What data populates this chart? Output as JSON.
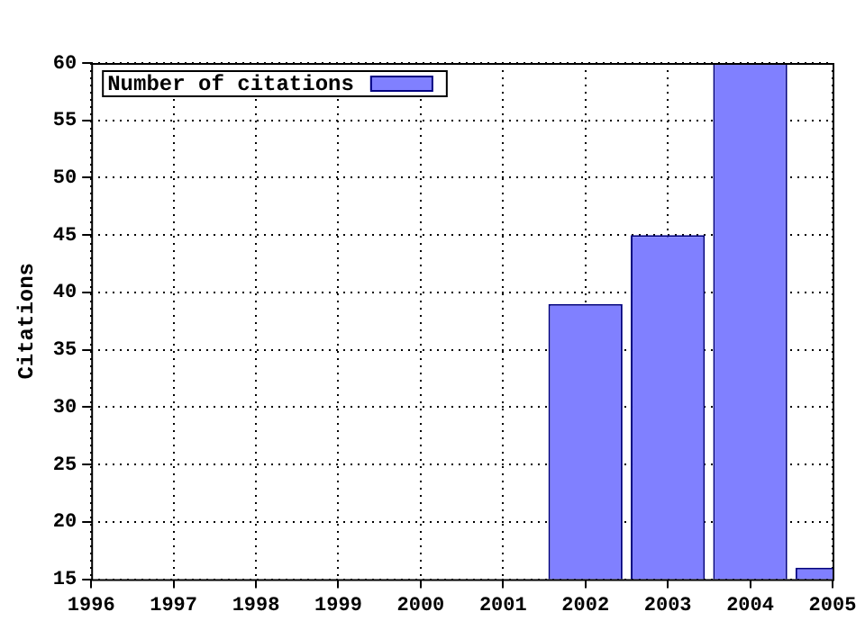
{
  "chart_data": {
    "type": "bar",
    "ylabel": "Citations",
    "x": [
      2002,
      2003,
      2004,
      2005
    ],
    "series": [
      {
        "name": "Number of citations",
        "color": "#8080ff",
        "values": [
          39,
          45,
          60,
          16
        ]
      }
    ],
    "xlim": [
      1996,
      2005
    ],
    "xticks": [
      1996,
      1997,
      1998,
      1999,
      2000,
      2001,
      2002,
      2003,
      2004,
      2005
    ],
    "ylim": [
      15,
      60
    ],
    "yticks": [
      15,
      20,
      25,
      30,
      35,
      40,
      45,
      50,
      55,
      60
    ],
    "grid": true,
    "legend": "top left"
  }
}
